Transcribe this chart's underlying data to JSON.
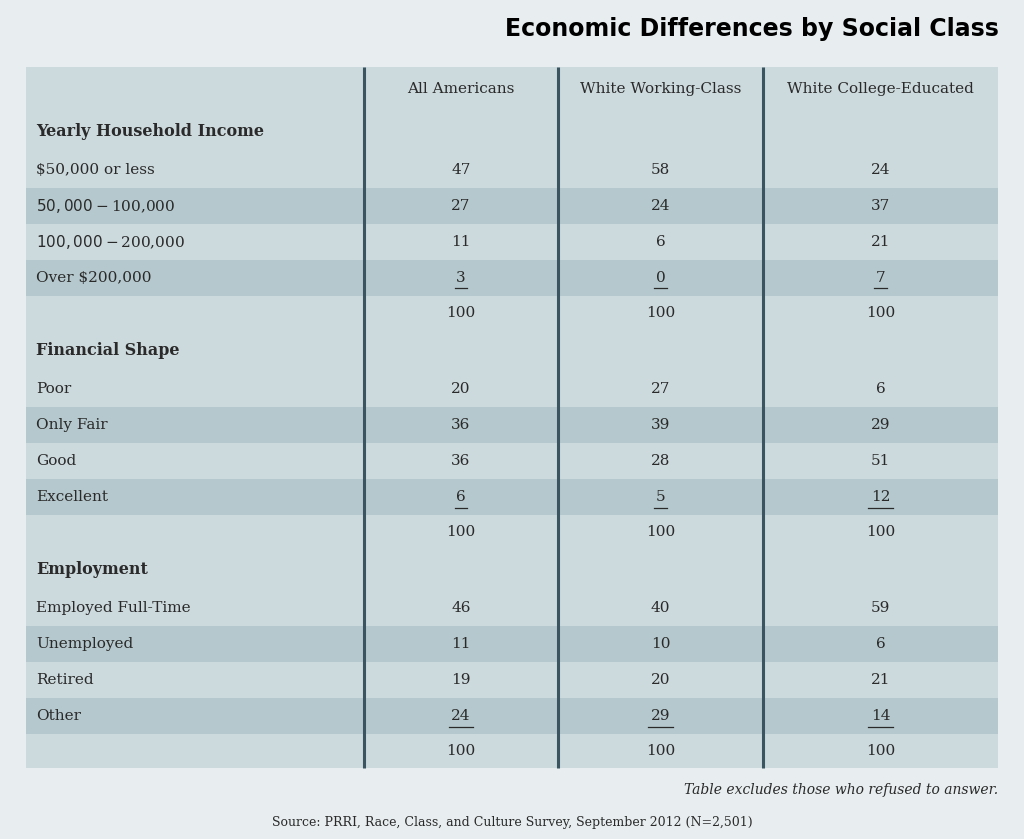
{
  "title": "Economic Differences by Social Class",
  "columns": [
    "All Americans",
    "White Working-Class",
    "White College-Educated"
  ],
  "rows": [
    {
      "label": "Yearly Household Income",
      "is_header": true,
      "values": [
        "",
        "",
        ""
      ],
      "underline": [
        false,
        false,
        false
      ]
    },
    {
      "label": "$50,000 or less",
      "is_header": false,
      "values": [
        "47",
        "58",
        "24"
      ],
      "underline": [
        false,
        false,
        false
      ]
    },
    {
      "label": "$50,000-$100,000",
      "is_header": false,
      "values": [
        "27",
        "24",
        "37"
      ],
      "underline": [
        false,
        false,
        false
      ]
    },
    {
      "label": "$100,000-$200,000",
      "is_header": false,
      "values": [
        "11",
        "6",
        "21"
      ],
      "underline": [
        false,
        false,
        false
      ]
    },
    {
      "label": "Over $200,000",
      "is_header": false,
      "values": [
        "3",
        "0",
        "7"
      ],
      "underline": [
        true,
        true,
        true
      ]
    },
    {
      "label": "",
      "is_header": false,
      "is_total": true,
      "values": [
        "100",
        "100",
        "100"
      ],
      "underline": [
        false,
        false,
        false
      ]
    },
    {
      "label": "Financial Shape",
      "is_header": true,
      "values": [
        "",
        "",
        ""
      ],
      "underline": [
        false,
        false,
        false
      ]
    },
    {
      "label": "Poor",
      "is_header": false,
      "values": [
        "20",
        "27",
        "6"
      ],
      "underline": [
        false,
        false,
        false
      ]
    },
    {
      "label": "Only Fair",
      "is_header": false,
      "values": [
        "36",
        "39",
        "29"
      ],
      "underline": [
        false,
        false,
        false
      ]
    },
    {
      "label": "Good",
      "is_header": false,
      "values": [
        "36",
        "28",
        "51"
      ],
      "underline": [
        false,
        false,
        false
      ]
    },
    {
      "label": "Excellent",
      "is_header": false,
      "values": [
        "6",
        "5",
        "12"
      ],
      "underline": [
        true,
        true,
        true
      ]
    },
    {
      "label": "",
      "is_header": false,
      "is_total": true,
      "values": [
        "100",
        "100",
        "100"
      ],
      "underline": [
        false,
        false,
        false
      ]
    },
    {
      "label": "Employment",
      "is_header": true,
      "values": [
        "",
        "",
        ""
      ],
      "underline": [
        false,
        false,
        false
      ]
    },
    {
      "label": "Employed Full-Time",
      "is_header": false,
      "values": [
        "46",
        "40",
        "59"
      ],
      "underline": [
        false,
        false,
        false
      ]
    },
    {
      "label": "Unemployed",
      "is_header": false,
      "values": [
        "11",
        "10",
        "6"
      ],
      "underline": [
        false,
        false,
        false
      ]
    },
    {
      "label": "Retired",
      "is_header": false,
      "values": [
        "19",
        "20",
        "21"
      ],
      "underline": [
        false,
        false,
        false
      ]
    },
    {
      "label": "Other",
      "is_header": false,
      "values": [
        "24",
        "29",
        "14"
      ],
      "underline": [
        true,
        true,
        true
      ]
    },
    {
      "label": "",
      "is_header": false,
      "is_total": true,
      "values": [
        "100",
        "100",
        "100"
      ],
      "underline": [
        false,
        false,
        false
      ]
    }
  ],
  "footnote": "Table excludes those who refused to answer.",
  "source": "Source: PRRI, Race, Class, and Culture Survey, September 2012 (N=2,501)",
  "bg_color_light": "#ccd9dd",
  "bg_color_dark": "#b5c8cd",
  "text_color": "#2a2a2a",
  "title_color": "#000000",
  "col_divider_color": "#3a5560",
  "fig_bg": "#e8eef0"
}
